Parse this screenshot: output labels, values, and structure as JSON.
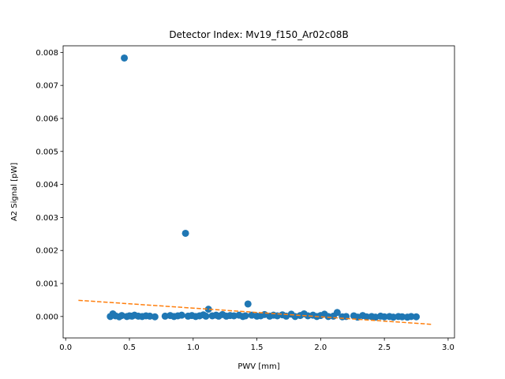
{
  "chart_data": {
    "type": "scatter",
    "title": "Detector Index: Mv19_f150_Ar02c08B",
    "xlabel": "PWV [mm]",
    "ylabel": "A2 Signal [pW]",
    "xlim": [
      -0.02,
      3.05
    ],
    "ylim": [
      -0.00065,
      0.0082
    ],
    "xticks": [
      0.0,
      0.5,
      1.0,
      1.5,
      2.0,
      2.5,
      3.0
    ],
    "xtick_labels": [
      "0.0",
      "0.5",
      "1.0",
      "1.5",
      "2.0",
      "2.5",
      "3.0"
    ],
    "yticks": [
      0.0,
      0.001,
      0.002,
      0.003,
      0.004,
      0.005,
      0.006,
      0.007,
      0.008
    ],
    "ytick_labels": [
      "0.000",
      "0.001",
      "0.002",
      "0.003",
      "0.004",
      "0.005",
      "0.006",
      "0.007",
      "0.008"
    ],
    "grid": false,
    "series": [
      {
        "kind": "points",
        "color": "#1f77b4",
        "x": [
          0.46,
          0.94,
          1.43,
          1.12,
          0.37,
          0.35,
          0.39,
          0.42,
          0.44,
          0.48,
          0.5,
          0.52,
          0.54,
          0.57,
          0.6,
          0.63,
          0.66,
          0.7,
          0.78,
          0.82,
          0.85,
          0.88,
          0.91,
          0.96,
          0.99,
          1.02,
          1.05,
          1.08,
          1.1,
          1.15,
          1.18,
          1.2,
          1.23,
          1.26,
          1.29,
          1.32,
          1.36,
          1.39,
          1.41,
          1.46,
          1.5,
          1.53,
          1.56,
          1.6,
          1.63,
          1.66,
          1.7,
          1.73,
          1.77,
          1.8,
          1.84,
          1.87,
          1.9,
          1.94,
          1.97,
          2.0,
          2.03,
          2.06,
          2.1,
          2.13,
          2.17,
          2.2,
          2.26,
          2.29,
          2.33,
          2.36,
          2.4,
          2.43,
          2.47,
          2.5,
          2.54,
          2.57,
          2.61,
          2.64,
          2.68,
          2.71,
          2.75
        ],
        "y": [
          0.00783,
          0.00252,
          0.00038,
          0.00022,
          8e-05,
          0.0,
          2e-05,
          -1e-05,
          3e-05,
          0.0,
          2e-05,
          1e-05,
          4e-05,
          1e-05,
          0.0,
          2e-05,
          1e-05,
          -1e-05,
          1e-05,
          3e-05,
          0.0,
          2e-05,
          4e-05,
          1e-05,
          3e-05,
          0.0,
          2e-05,
          5e-05,
          1e-05,
          2e-05,
          4e-05,
          1e-05,
          6e-05,
          1e-05,
          3e-05,
          2e-05,
          4e-05,
          0.0,
          2e-05,
          4e-05,
          1e-05,
          2e-05,
          6e-05,
          1e-05,
          4e-05,
          2e-05,
          5e-05,
          1e-05,
          7e-05,
          0.0,
          3e-05,
          8e-05,
          2e-05,
          4e-05,
          0.0,
          3e-05,
          7e-05,
          0.0,
          1e-05,
          0.00012,
          -1e-05,
          0.0,
          2e-05,
          -2e-05,
          3e-05,
          -1e-05,
          0.0,
          -2e-05,
          1e-05,
          -1e-05,
          0.0,
          -2e-05,
          0.0,
          -1e-05,
          -2e-05,
          0.0,
          -1e-05
        ]
      },
      {
        "kind": "dashed-line",
        "color": "#ff7f0e",
        "x": [
          0.1,
          2.88
        ],
        "y": [
          0.00049,
          -0.00024
        ]
      }
    ]
  }
}
